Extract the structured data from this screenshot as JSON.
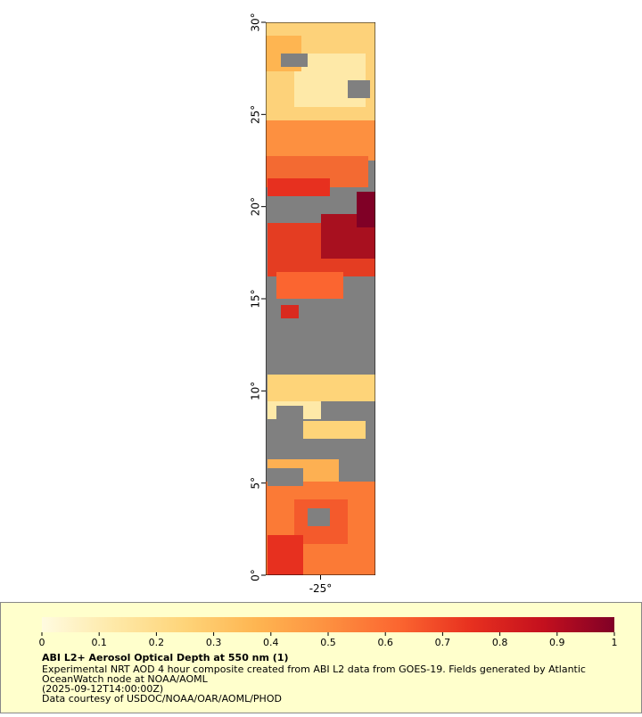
{
  "map": {
    "xlim": [
      -28,
      -22
    ],
    "ylim": [
      0,
      30
    ],
    "xticks": [
      {
        "value": -25,
        "label": "-25°"
      }
    ],
    "yticks": [
      {
        "value": 0,
        "label": "0°"
      },
      {
        "value": 5,
        "label": "5°"
      },
      {
        "value": 10,
        "label": "10°"
      },
      {
        "value": 15,
        "label": "15°"
      },
      {
        "value": 20,
        "label": "20°"
      },
      {
        "value": 25,
        "label": "25°"
      },
      {
        "value": 30,
        "label": "30°"
      }
    ],
    "missing_color": "#808080"
  },
  "colorbar": {
    "lim": [
      0,
      1
    ],
    "ticks": [
      0,
      0.1,
      0.2,
      0.3,
      0.4,
      0.5,
      0.6,
      0.7,
      0.8,
      0.9,
      1
    ],
    "colormap": [
      "#fffbe0",
      "#fee9a8",
      "#fed479",
      "#feb551",
      "#fd9040",
      "#fb6530",
      "#e7301f",
      "#c4101e",
      "#800026"
    ]
  },
  "legend": {
    "title": "ABI L2+ Aerosol Optical Depth at 550 nm (1)",
    "lines": [
      "Experimental NRT AOD 4 hour composite created from ABI L2 data from GOES-19. Fields generated by Atlantic",
      "OceanWatch node at NOAA/AOML",
      "(2025-09-12T14:00:00Z)",
      "Data courtesy of USDOC/NOAA/OAR/AOML/PHOD"
    ]
  }
}
